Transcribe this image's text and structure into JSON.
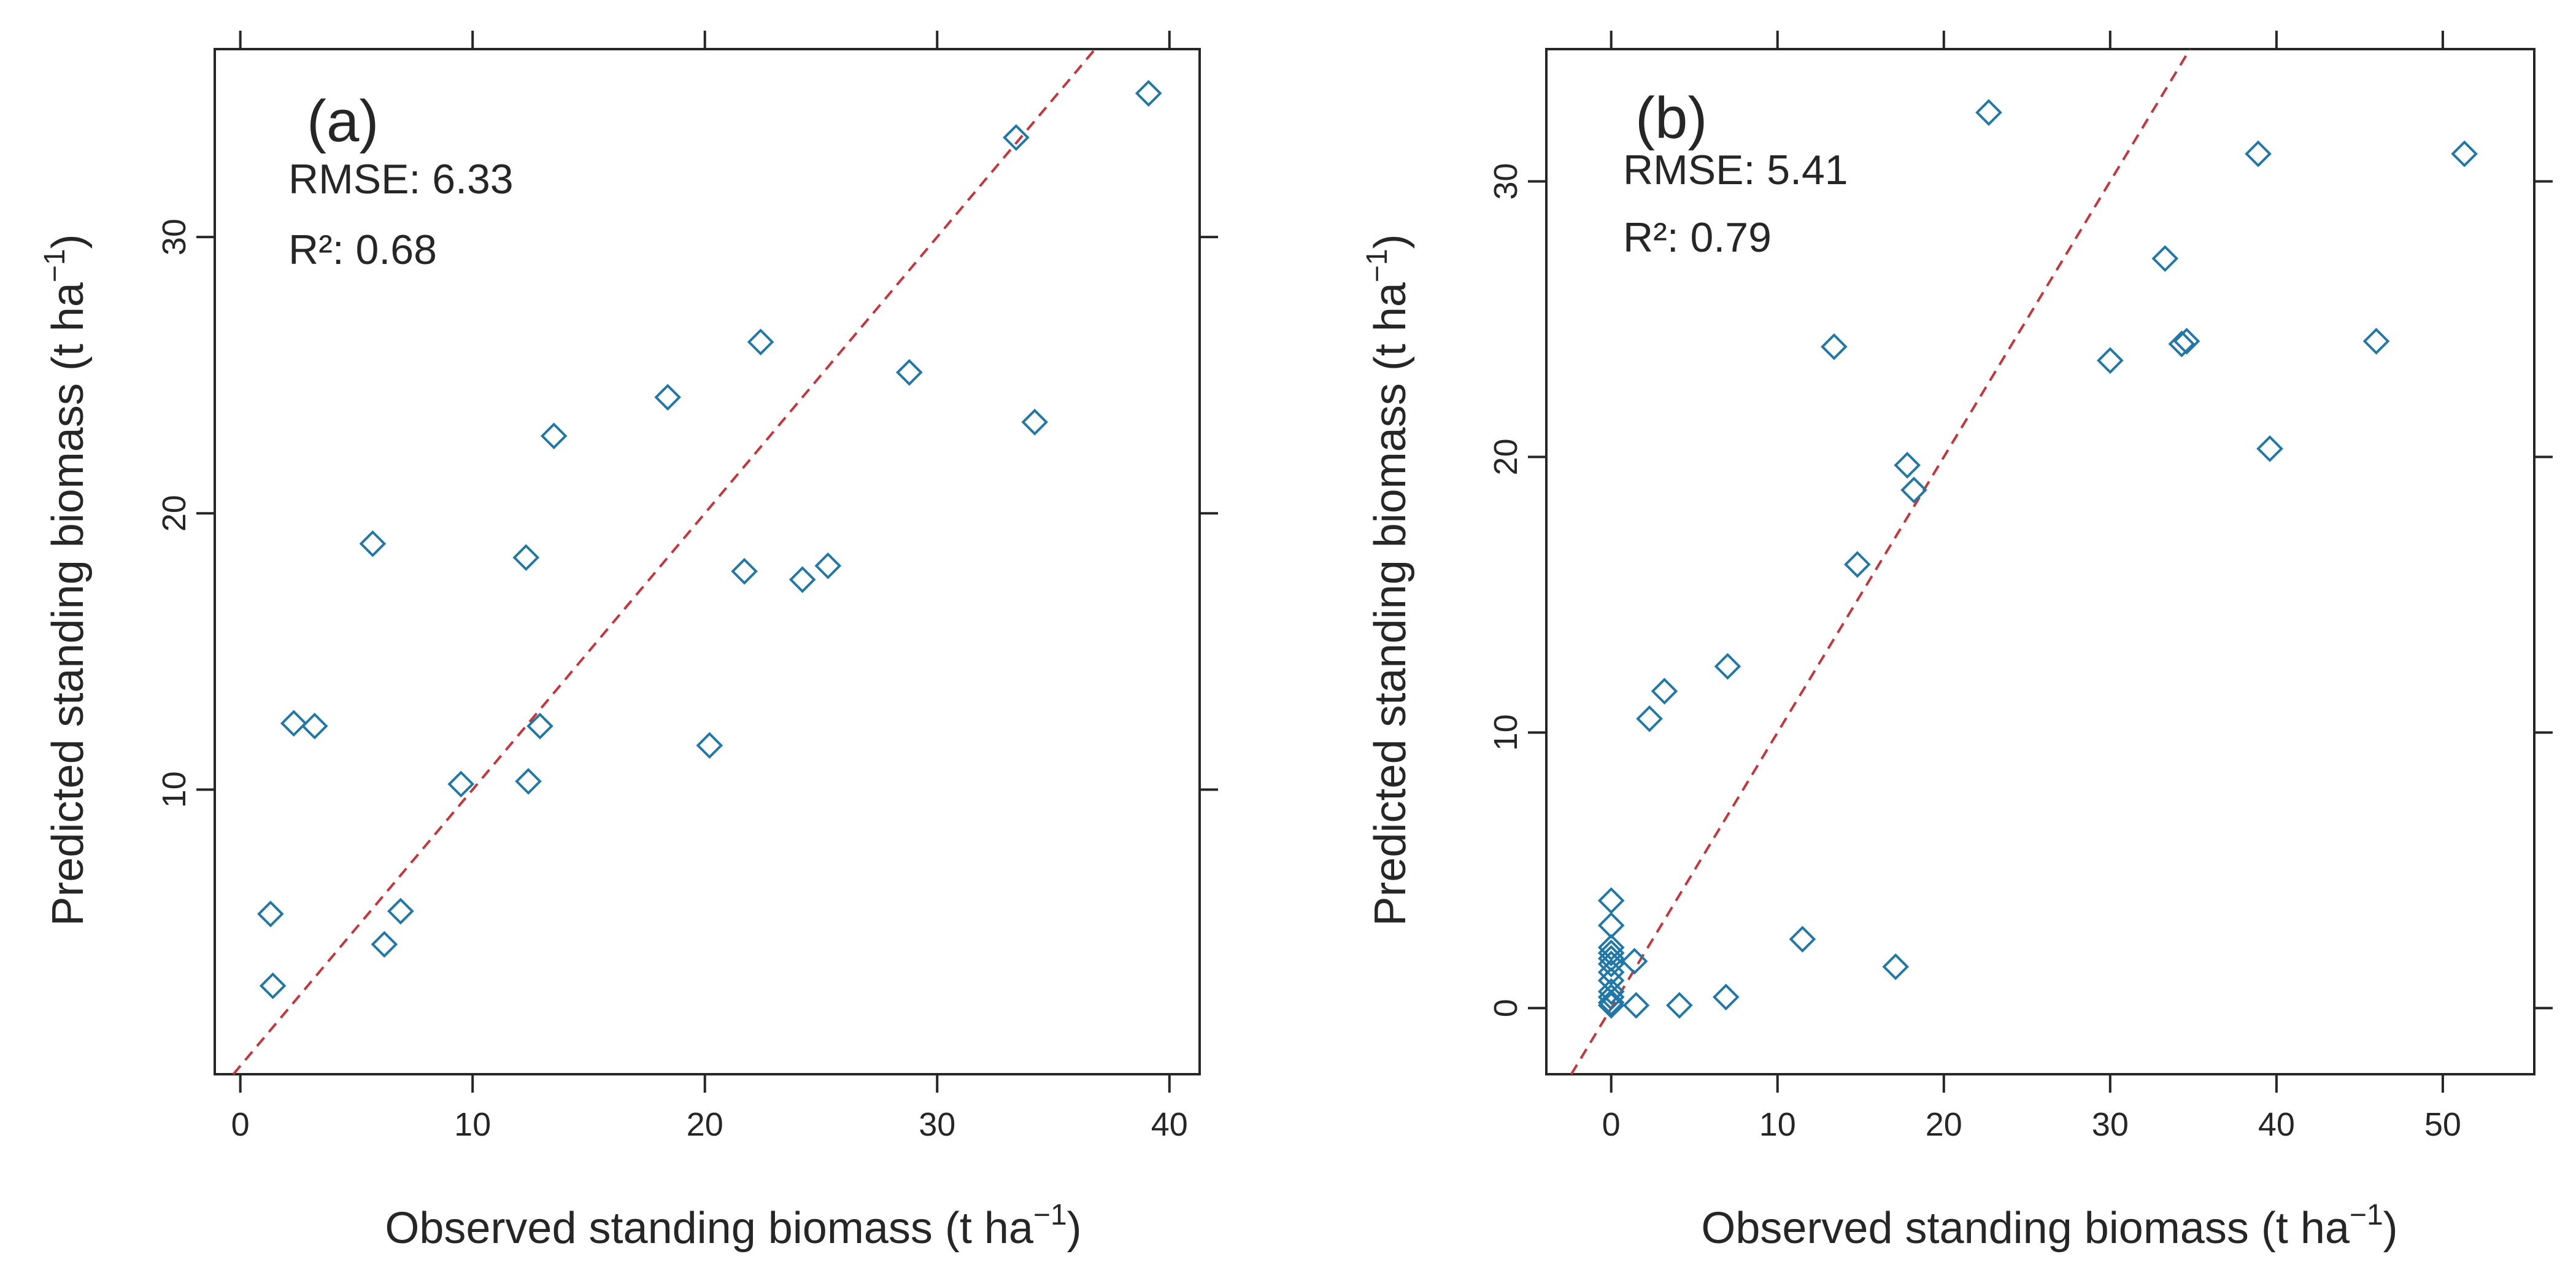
{
  "figure": {
    "description_caption": ""
  },
  "chart_data": [
    {
      "type": "scatter",
      "panel": "(a)",
      "xlabel": "Observed standing biomass (t ha",
      "xlabel_sup": "−1",
      "xlabel_close": ")",
      "ylabel": "Predicted standing biomass (t ha",
      "ylabel_sup": "−1",
      "ylabel_close": ")",
      "xlim": [
        -1.1,
        41.3
      ],
      "ylim": [
        -0.3,
        36.8
      ],
      "xticks": [
        0,
        10,
        20,
        30,
        40
      ],
      "yticks": [
        10,
        20,
        30
      ],
      "stats": {
        "rmse": "RMSE: 6.33",
        "r2": "R²: 0.68"
      },
      "fit_line": {
        "slope": 1.0,
        "intercept": 0.0,
        "style": "dashed",
        "color": "#c8343a"
      },
      "x": [
        1.4,
        1.3,
        2.3,
        3.2,
        6.2,
        6.9,
        5.7,
        9.5,
        12.4,
        12.3,
        12.9,
        13.5,
        18.4,
        20.2,
        21.7,
        22.4,
        24.2,
        25.3,
        28.8,
        34.2,
        33.4,
        39.1
      ],
      "y": [
        2.9,
        5.5,
        12.4,
        12.3,
        4.4,
        5.6,
        18.9,
        10.2,
        10.3,
        18.4,
        12.3,
        22.8,
        24.2,
        11.6,
        17.9,
        26.2,
        17.6,
        18.1,
        25.1,
        23.3,
        33.6,
        35.2
      ]
    },
    {
      "type": "scatter",
      "panel": "(b)",
      "xlabel": "Observed standing biomass (t ha",
      "xlabel_sup": "−1",
      "xlabel_close": ")",
      "ylabel": "Predicted standing biomass (t ha",
      "ylabel_sup": "−1",
      "ylabel_close": ")",
      "xlim": [
        -3.9,
        55.5
      ],
      "ylim": [
        -2.4,
        34.8
      ],
      "xticks": [
        0,
        10,
        20,
        30,
        40,
        50
      ],
      "yticks": [
        0,
        10,
        20,
        30
      ],
      "stats": {
        "rmse": "RMSE: 5.41",
        "r2": "R²: 0.79"
      },
      "fit_line": {
        "slope": 1.0,
        "intercept": 0.0,
        "style": "dashed",
        "color": "#c8343a"
      },
      "x": [
        0,
        0,
        0,
        0,
        0,
        0,
        0,
        0,
        0,
        0,
        0,
        0,
        1.4,
        1.5,
        4.1,
        6.9,
        11.5,
        17.1,
        2.3,
        3.2,
        7.0,
        13.4,
        14.8,
        17.8,
        18.2,
        22.7,
        30.0,
        33.3,
        34.3,
        34.6,
        38.9,
        39.6,
        46.0,
        51.3
      ],
      "y": [
        3.9,
        3.0,
        2.2,
        2.0,
        1.8,
        1.6,
        1.3,
        1.0,
        0.6,
        0.4,
        0.2,
        0.1,
        1.7,
        0.1,
        0.1,
        0.4,
        2.5,
        1.5,
        10.5,
        11.5,
        12.4,
        24.0,
        16.1,
        19.7,
        18.8,
        32.5,
        23.5,
        27.2,
        24.1,
        24.2,
        31.0,
        20.3,
        24.2,
        31.0
      ]
    }
  ]
}
